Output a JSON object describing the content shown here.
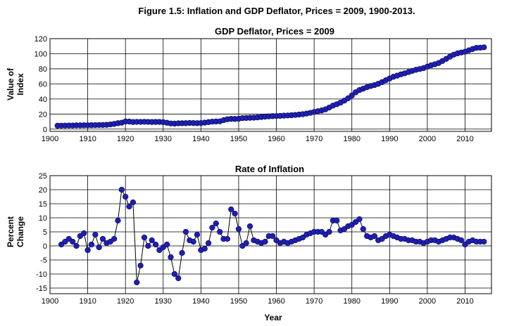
{
  "figure_title": "Figure 1.5: Inflation and GDP Deflator, Prices = 2009, 1900-2013.",
  "chart_data": [
    {
      "type": "line",
      "title": "GDP Deflator, Prices = 2009",
      "ylabel_lines": [
        "Value of",
        "Index"
      ],
      "xlabel": "",
      "xlim": [
        1900,
        2017
      ],
      "ylim": [
        -3,
        120
      ],
      "xticks": [
        1900,
        1910,
        1920,
        1930,
        1940,
        1950,
        1960,
        1970,
        1980,
        1990,
        2000,
        2010
      ],
      "yticks": [
        0,
        20,
        40,
        60,
        80,
        100,
        120
      ],
      "grid": true,
      "marker_color": "#1f1fb0",
      "series": [
        {
          "name": "GDP Deflator",
          "x": [
            1902,
            1903,
            1904,
            1905,
            1906,
            1907,
            1908,
            1909,
            1910,
            1911,
            1912,
            1913,
            1914,
            1915,
            1916,
            1917,
            1918,
            1919,
            1920,
            1921,
            1922,
            1923,
            1924,
            1925,
            1926,
            1927,
            1928,
            1929,
            1930,
            1931,
            1932,
            1933,
            1934,
            1935,
            1936,
            1937,
            1938,
            1939,
            1940,
            1941,
            1942,
            1943,
            1944,
            1945,
            1946,
            1947,
            1948,
            1949,
            1950,
            1951,
            1952,
            1953,
            1954,
            1955,
            1956,
            1957,
            1958,
            1959,
            1960,
            1961,
            1962,
            1963,
            1964,
            1965,
            1966,
            1967,
            1968,
            1969,
            1970,
            1971,
            1972,
            1973,
            1974,
            1975,
            1976,
            1977,
            1978,
            1979,
            1980,
            1981,
            1982,
            1983,
            1984,
            1985,
            1986,
            1987,
            1988,
            1989,
            1990,
            1991,
            1992,
            1993,
            1994,
            1995,
            1996,
            1997,
            1998,
            1999,
            2000,
            2001,
            2002,
            2003,
            2004,
            2005,
            2006,
            2007,
            2008,
            2009,
            2010,
            2011,
            2012,
            2013,
            2014,
            2015
          ],
          "values": [
            4.5,
            4.6,
            4.7,
            4.8,
            4.8,
            5.0,
            5.0,
            5.1,
            5.1,
            5.2,
            5.3,
            5.4,
            5.5,
            5.7,
            6.2,
            6.9,
            7.9,
            8.5,
            10.1,
            10.0,
            9.4,
            9.6,
            9.6,
            9.7,
            9.6,
            9.4,
            9.5,
            9.5,
            9.2,
            8.4,
            7.5,
            7.3,
            7.7,
            7.8,
            7.9,
            8.2,
            8.0,
            7.9,
            8.0,
            8.6,
            9.3,
            9.9,
            10.1,
            10.3,
            11.9,
            13.0,
            13.6,
            13.5,
            13.7,
            14.6,
            14.8,
            15.0,
            15.2,
            15.5,
            16.0,
            16.5,
            16.9,
            17.2,
            17.4,
            17.6,
            17.9,
            18.1,
            18.4,
            18.8,
            19.3,
            19.8,
            20.6,
            21.6,
            22.7,
            23.8,
            24.8,
            26.2,
            28.6,
            31.2,
            33.0,
            35.2,
            37.8,
            40.9,
            44.6,
            48.8,
            51.8,
            53.6,
            55.6,
            57.2,
            58.4,
            60.1,
            62.3,
            64.8,
            67.1,
            69.4,
            70.9,
            72.6,
            74.0,
            75.6,
            77.2,
            78.7,
            79.7,
            80.9,
            82.9,
            84.7,
            86.0,
            87.7,
            90.3,
            93.2,
            96.1,
            98.7,
            100.5,
            101.6,
            102.6,
            104.5,
            106.2,
            107.8,
            108.0,
            108.5
          ]
        }
      ]
    },
    {
      "type": "line",
      "title": "Rate of Inflation",
      "ylabel_lines": [
        "Percent",
        "Change"
      ],
      "xlabel": "Year",
      "xlim": [
        1900,
        2017
      ],
      "ylim": [
        -17,
        25
      ],
      "xticks": [
        1900,
        1910,
        1920,
        1930,
        1940,
        1950,
        1960,
        1970,
        1980,
        1990,
        2000,
        2010
      ],
      "yticks": [
        -15,
        -10,
        -5,
        0,
        5,
        10,
        15,
        20,
        25
      ],
      "grid": true,
      "marker_color": "#1f1fb0",
      "series": [
        {
          "name": "Rate of Inflation",
          "x": [
            1903,
            1904,
            1905,
            1906,
            1907,
            1908,
            1909,
            1910,
            1911,
            1912,
            1913,
            1914,
            1915,
            1916,
            1917,
            1918,
            1919,
            1920,
            1921,
            1922,
            1923,
            1924,
            1925,
            1926,
            1927,
            1928,
            1929,
            1930,
            1931,
            1932,
            1933,
            1934,
            1935,
            1936,
            1937,
            1938,
            1939,
            1940,
            1941,
            1942,
            1943,
            1944,
            1945,
            1946,
            1947,
            1948,
            1949,
            1950,
            1951,
            1952,
            1953,
            1954,
            1955,
            1956,
            1957,
            1958,
            1959,
            1960,
            1961,
            1962,
            1963,
            1964,
            1965,
            1966,
            1967,
            1968,
            1969,
            1970,
            1971,
            1972,
            1973,
            1974,
            1975,
            1976,
            1977,
            1978,
            1979,
            1980,
            1981,
            1982,
            1983,
            1984,
            1985,
            1986,
            1987,
            1988,
            1989,
            1990,
            1991,
            1992,
            1993,
            1994,
            1995,
            1996,
            1997,
            1998,
            1999,
            2000,
            2001,
            2002,
            2003,
            2004,
            2005,
            2006,
            2007,
            2008,
            2009,
            2010,
            2011,
            2012,
            2013,
            2014,
            2015
          ],
          "values": [
            0.5,
            1.5,
            2.5,
            1.5,
            0.0,
            3.5,
            4.5,
            -1.5,
            0.5,
            4.0,
            -0.5,
            2.5,
            1.0,
            1.5,
            2.5,
            9.0,
            20.0,
            17.5,
            14.0,
            15.5,
            -13.0,
            -7.0,
            3.0,
            0.0,
            2.0,
            0.5,
            -1.5,
            -0.5,
            0.5,
            -4.0,
            -10.0,
            -11.5,
            -2.5,
            5.0,
            2.0,
            1.5,
            4.0,
            -1.5,
            -1.0,
            1.0,
            6.5,
            8.0,
            5.0,
            2.5,
            2.5,
            13.0,
            11.5,
            6.0,
            0.0,
            1.0,
            7.0,
            2.0,
            1.5,
            1.0,
            1.5,
            3.5,
            3.5,
            2.0,
            1.0,
            1.5,
            1.0,
            1.5,
            2.0,
            2.5,
            3.0,
            4.0,
            4.5,
            5.0,
            5.0,
            5.0,
            4.0,
            5.0,
            9.0,
            9.0,
            5.5,
            6.0,
            7.0,
            7.5,
            8.5,
            9.5,
            6.0,
            3.5,
            3.0,
            3.5,
            2.0,
            2.5,
            3.5,
            4.0,
            3.5,
            3.0,
            2.5,
            2.5,
            2.0,
            2.0,
            1.5,
            1.5,
            1.0,
            1.5,
            2.0,
            2.0,
            1.5,
            2.0,
            2.5,
            3.0,
            3.0,
            2.5,
            2.0,
            0.5,
            1.5,
            2.0,
            1.5,
            1.5,
            1.5
          ]
        }
      ]
    }
  ]
}
